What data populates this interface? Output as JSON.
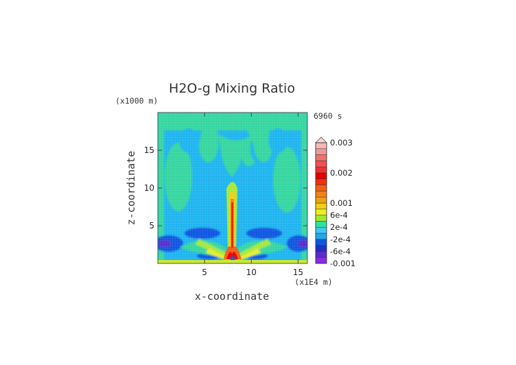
{
  "chart_data": {
    "type": "heatmap",
    "title": "H2O-g Mixing Ratio",
    "time_label": "6960 s",
    "xlabel": "x-coordinate",
    "ylabel": "z-coordinate",
    "x_unit": "(x1E4 m)",
    "y_unit": "(x1000 m)",
    "xlim": [
      0,
      16
    ],
    "ylim": [
      0,
      20
    ],
    "x_ticks": [
      5,
      10,
      15
    ],
    "y_ticks": [
      5,
      10,
      15
    ],
    "colorbar": {
      "labels": [
        "0.003",
        "0.002",
        "0.001",
        "6e-4",
        "2e-4",
        "-2e-4",
        "-6e-4",
        "-0.001"
      ],
      "label_values": [
        0.003,
        0.002,
        0.001,
        0.0006,
        0.0002,
        -0.0002,
        -0.0006,
        -0.001
      ],
      "levels": [
        -0.001,
        -0.0008,
        -0.0006,
        -0.0004,
        -0.0002,
        0,
        0.0002,
        0.0004,
        0.0006,
        0.0008,
        0.001,
        0.0012,
        0.0014,
        0.0016,
        0.0018,
        0.002,
        0.0022,
        0.0024,
        0.0026,
        0.0028,
        0.003
      ],
      "colors": [
        "#8a2be2",
        "#5a2bc8",
        "#2030c0",
        "#1055e0",
        "#1ea8f0",
        "#40c8f0",
        "#30e0a0",
        "#a0e830",
        "#e8f020",
        "#f0d010",
        "#f0a010",
        "#f08020",
        "#f06010",
        "#f03010",
        "#e80000",
        "#f03030",
        "#f05050",
        "#f07070",
        "#f09898",
        "#f8b8b8"
      ]
    }
  }
}
